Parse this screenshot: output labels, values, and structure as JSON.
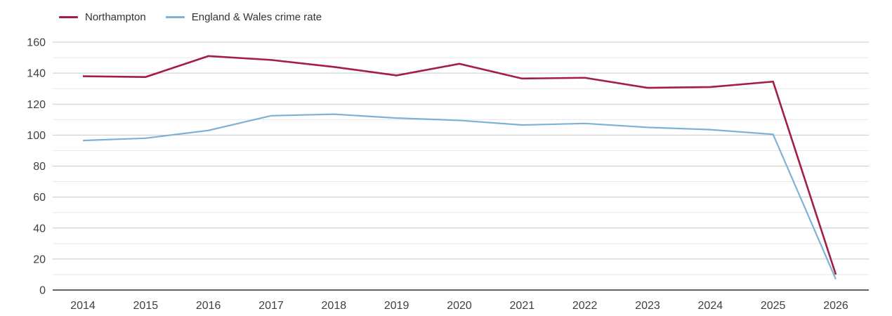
{
  "colors": {
    "background": "#ffffff",
    "grid_major": "#c9c9c9",
    "grid_minor": "#e7e7e7",
    "axis": "#333333",
    "text": "#404040",
    "legend_text": "#333333"
  },
  "chart_data": {
    "type": "line",
    "title": "",
    "xlabel": "",
    "ylabel": "",
    "x": [
      2014,
      2015,
      2016,
      2017,
      2018,
      2019,
      2020,
      2021,
      2022,
      2023,
      2024,
      2025,
      2026
    ],
    "series": [
      {
        "name": "Northampton",
        "color": "#a31e41",
        "values": [
          138,
          137.5,
          151,
          148.5,
          144,
          138.5,
          146,
          136.5,
          137,
          130.5,
          131,
          134.5,
          10
        ]
      },
      {
        "name": "England & Wales crime rate",
        "color": "#7eb2d4",
        "values": [
          96.5,
          98,
          103,
          112.5,
          113.5,
          111,
          109.5,
          106.5,
          107.5,
          105,
          103.5,
          100.5,
          7
        ]
      }
    ],
    "ylim": [
      0,
      160
    ],
    "y_ticks": [
      0,
      20,
      40,
      60,
      80,
      100,
      120,
      140,
      160
    ],
    "y_grid_step": 10,
    "grid": true,
    "legend_position": "top-left"
  }
}
